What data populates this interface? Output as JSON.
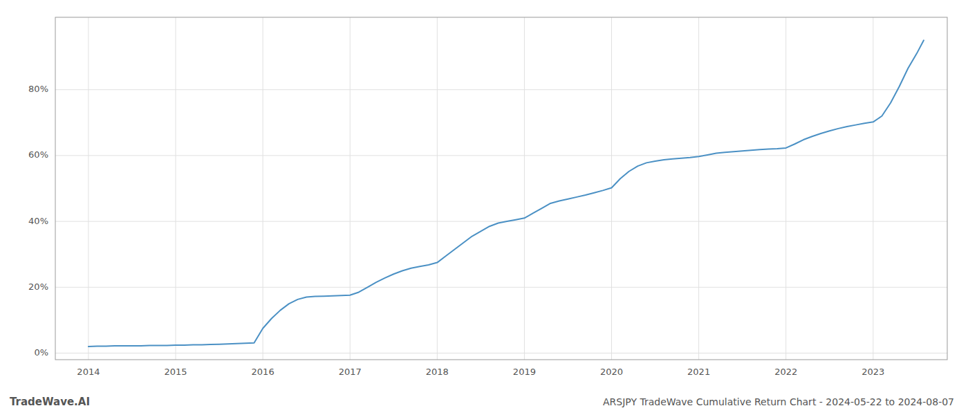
{
  "chart_data": {
    "type": "line",
    "title": "ARSJPY TradeWave Cumulative Return Chart - 2024-05-22 to 2024-08-07",
    "annotations": [
      "TradeWave.AI"
    ],
    "color": "#4a90c4",
    "grid": true,
    "x": [
      2014.0,
      2014.1,
      2014.2,
      2014.3,
      2014.4,
      2014.5,
      2014.6,
      2014.7,
      2014.8,
      2014.9,
      2015.0,
      2015.1,
      2015.2,
      2015.3,
      2015.4,
      2015.5,
      2015.6,
      2015.7,
      2015.8,
      2015.9,
      2016.0,
      2016.1,
      2016.2,
      2016.3,
      2016.4,
      2016.5,
      2016.6,
      2016.7,
      2016.8,
      2016.9,
      2017.0,
      2017.1,
      2017.2,
      2017.3,
      2017.4,
      2017.5,
      2017.6,
      2017.7,
      2017.8,
      2017.9,
      2018.0,
      2018.1,
      2018.2,
      2018.3,
      2018.4,
      2018.5,
      2018.6,
      2018.7,
      2018.8,
      2018.9,
      2019.0,
      2019.1,
      2019.2,
      2019.3,
      2019.4,
      2019.5,
      2019.6,
      2019.7,
      2019.8,
      2019.9,
      2020.0,
      2020.1,
      2020.2,
      2020.3,
      2020.4,
      2020.5,
      2020.6,
      2020.7,
      2020.8,
      2020.9,
      2021.0,
      2021.1,
      2021.2,
      2021.3,
      2021.4,
      2021.5,
      2021.6,
      2021.7,
      2021.8,
      2021.9,
      2022.0,
      2022.1,
      2022.2,
      2022.3,
      2022.4,
      2022.5,
      2022.6,
      2022.7,
      2022.8,
      2022.9,
      2023.0,
      2023.1,
      2023.2,
      2023.3,
      2023.4,
      2023.5,
      2023.58
    ],
    "values": [
      0.02,
      0.021,
      0.021,
      0.022,
      0.022,
      0.022,
      0.022,
      0.023,
      0.023,
      0.023,
      0.024,
      0.024,
      0.025,
      0.025,
      0.026,
      0.027,
      0.028,
      0.029,
      0.03,
      0.031,
      0.075,
      0.105,
      0.13,
      0.15,
      0.163,
      0.17,
      0.172,
      0.173,
      0.174,
      0.175,
      0.176,
      0.185,
      0.2,
      0.215,
      0.228,
      0.24,
      0.25,
      0.258,
      0.263,
      0.268,
      0.275,
      0.295,
      0.315,
      0.335,
      0.355,
      0.37,
      0.385,
      0.395,
      0.4,
      0.405,
      0.41,
      0.425,
      0.44,
      0.455,
      0.462,
      0.468,
      0.474,
      0.48,
      0.487,
      0.494,
      0.502,
      0.53,
      0.552,
      0.568,
      0.578,
      0.583,
      0.587,
      0.59,
      0.592,
      0.594,
      0.597,
      0.602,
      0.607,
      0.61,
      0.612,
      0.614,
      0.616,
      0.618,
      0.62,
      0.621,
      0.623,
      0.635,
      0.648,
      0.658,
      0.667,
      0.675,
      0.682,
      0.688,
      0.693,
      0.698,
      0.702,
      0.72,
      0.76,
      0.81,
      0.865,
      0.91,
      0.95
    ],
    "xlim": [
      2013.62,
      2023.85
    ],
    "xticks": [
      2014,
      2015,
      2016,
      2017,
      2018,
      2019,
      2020,
      2021,
      2022,
      2023
    ],
    "ylim": [
      -0.02,
      1.02
    ],
    "yticks": [
      {
        "value": 0.0,
        "label": "0%"
      },
      {
        "value": 0.2,
        "label": "20%"
      },
      {
        "value": 0.4,
        "label": "40%"
      },
      {
        "value": 0.6,
        "label": "60%"
      },
      {
        "value": 0.8,
        "label": "80%"
      }
    ]
  }
}
